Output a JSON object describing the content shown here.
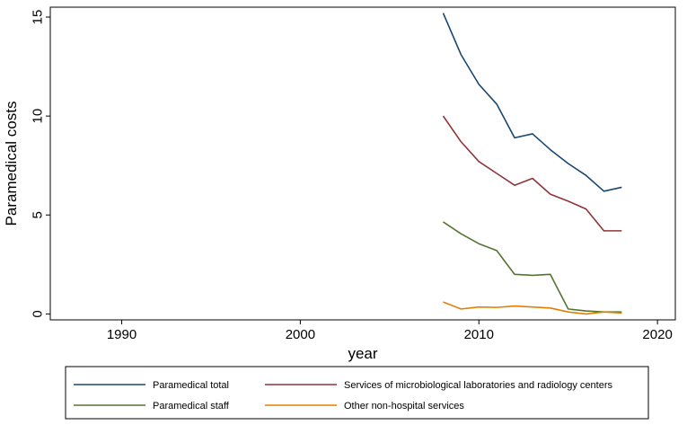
{
  "chart_data": {
    "type": "line",
    "title": "",
    "xlabel": "year",
    "ylabel": "Paramedical costs",
    "xlim": [
      1986,
      2021
    ],
    "ylim": [
      -0.3,
      15.5
    ],
    "xticks": [
      1990,
      2000,
      2010,
      2020
    ],
    "yticks": [
      0,
      5,
      10,
      15
    ],
    "grid": false,
    "legend_position": "bottom",
    "x": [
      2008,
      2009,
      2010,
      2011,
      2012,
      2013,
      2014,
      2015,
      2016,
      2017,
      2018
    ],
    "series": [
      {
        "name": "Paramedical total",
        "color": "#1a476f",
        "values": [
          15.2,
          13.1,
          11.6,
          10.6,
          8.9,
          9.1,
          8.3,
          7.6,
          7.0,
          6.2,
          6.4
        ]
      },
      {
        "name": "Services of microbiological laboratories and radiology centers",
        "color": "#90353b",
        "values": [
          10.0,
          8.7,
          7.7,
          7.1,
          6.5,
          6.85,
          6.05,
          5.7,
          5.3,
          4.2,
          4.2
        ]
      },
      {
        "name": "Paramedical staff",
        "color": "#55752f",
        "values": [
          4.65,
          4.05,
          3.55,
          3.2,
          2.0,
          1.95,
          2.0,
          0.25,
          0.15,
          0.1,
          0.1
        ]
      },
      {
        "name": "Other non-hospital services",
        "color": "#e37e00",
        "values": [
          0.6,
          0.25,
          0.35,
          0.33,
          0.4,
          0.35,
          0.3,
          0.1,
          0.0,
          0.1,
          0.05
        ]
      }
    ]
  }
}
